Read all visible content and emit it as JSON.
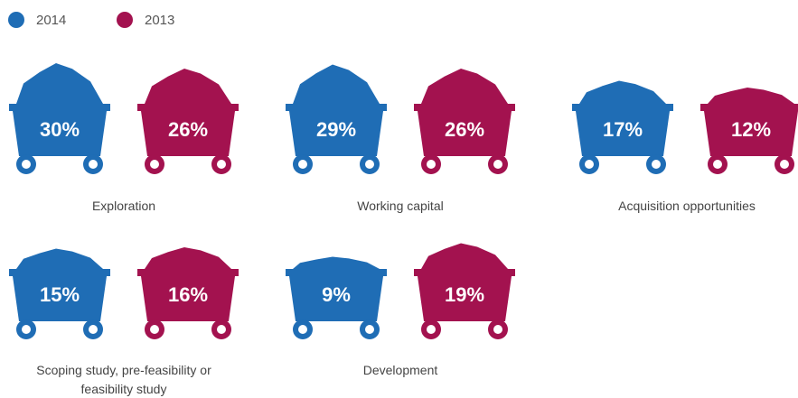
{
  "chart_data": {
    "type": "pictogram",
    "categories": [
      "Exploration",
      "Working capital",
      "Acquisition opportunities",
      "Scoping study, pre-feasibility or feasibility study",
      "Development"
    ],
    "series": [
      {
        "name": "2014",
        "color": "#1f6db5",
        "values": [
          30,
          29,
          17,
          15,
          9
        ],
        "value_labels": [
          "30%",
          "29%",
          "17%",
          "15%",
          "9%"
        ]
      },
      {
        "name": "2013",
        "color": "#a3124f",
        "values": [
          26,
          26,
          12,
          16,
          19
        ],
        "value_labels": [
          "26%",
          "26%",
          "12%",
          "16%",
          "19%"
        ]
      }
    ],
    "legend": "top-left"
  }
}
